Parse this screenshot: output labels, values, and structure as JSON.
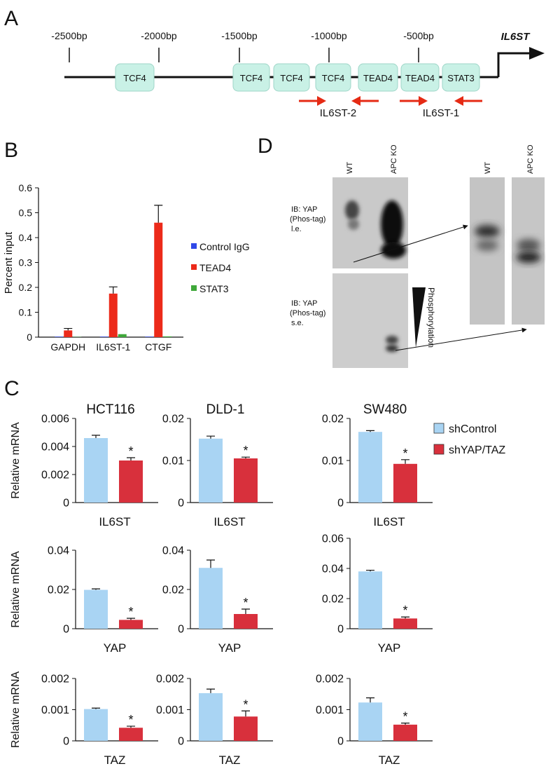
{
  "panel_a": {
    "label": "A",
    "positions": [
      "-2500bp",
      "-2000bp",
      "-1500bp",
      "-1000bp",
      "-500bp"
    ],
    "gene": "IL6ST",
    "sites": [
      "TCF4",
      "TCF4",
      "TCF4",
      "TCF4",
      "TEAD4",
      "TEAD4",
      "STAT3"
    ],
    "primers": [
      "IL6ST-2",
      "IL6ST-1"
    ]
  },
  "panel_b_label": "B",
  "panel_c_label": "C",
  "panel_c_legend": [
    {
      "name": "shControl",
      "color": "#a9d4f3"
    },
    {
      "name": "shYAP/TAZ",
      "color": "#d8303c"
    }
  ],
  "panel_d": {
    "label": "D",
    "lanes": [
      "WT",
      "APC KO"
    ],
    "zoom_lanes": [
      "WT",
      "APC KO"
    ],
    "blots": [
      {
        "probe": "IB: YAP",
        "method": "(Phos-tag)",
        "exposure": "l.e."
      },
      {
        "probe": "IB: YAP",
        "method": "(Phos-tag)",
        "exposure": "s.e."
      }
    ],
    "wedge": "Phosphorylation"
  },
  "chart_data": [
    {
      "type": "bar",
      "ylabel": "Percent input",
      "categories": [
        "GAPDH",
        "IL6ST-1",
        "CTGF"
      ],
      "series": [
        {
          "name": "Control IgG",
          "color": "#3048e8",
          "values": [
            0.002,
            0.002,
            0.002
          ]
        },
        {
          "name": "TEAD4",
          "color": "#ec2a1a",
          "values": [
            0.027,
            0.175,
            0.46
          ],
          "errors": [
            0.008,
            0.027,
            0.07
          ]
        },
        {
          "name": "STAT3",
          "color": "#3fa83a",
          "values": [
            0.001,
            0.012,
            0.003
          ]
        }
      ],
      "ylim": [
        0,
        0.6
      ],
      "yticks": [
        0,
        0.1,
        0.2,
        0.3,
        0.4,
        0.5,
        0.6
      ]
    },
    {
      "type": "bar",
      "title": "HCT116",
      "ylabel": "Relative mRNA",
      "categories": [
        "IL6ST"
      ],
      "series": [
        {
          "values": [
            0.0046
          ],
          "errors": [
            0.0002
          ]
        },
        {
          "values": [
            0.003
          ],
          "errors": [
            0.0002
          ],
          "annotation": "*"
        }
      ],
      "ylim": [
        0,
        0.006
      ],
      "yticks": [
        0,
        0.002,
        0.004,
        0.006
      ]
    },
    {
      "type": "bar",
      "title": "DLD-1",
      "categories": [
        "IL6ST"
      ],
      "series": [
        {
          "values": [
            0.0152
          ],
          "errors": [
            0.0006
          ]
        },
        {
          "values": [
            0.0105
          ],
          "errors": [
            0.0003
          ],
          "annotation": "*"
        }
      ],
      "ylim": [
        0,
        0.02
      ],
      "yticks": [
        0,
        0.01,
        0.02
      ]
    },
    {
      "type": "bar",
      "title": "SW480",
      "categories": [
        "IL6ST"
      ],
      "series": [
        {
          "values": [
            0.0168
          ],
          "errors": [
            0.0003
          ]
        },
        {
          "values": [
            0.0092
          ],
          "errors": [
            0.001
          ],
          "annotation": "*"
        }
      ],
      "ylim": [
        0,
        0.02
      ],
      "yticks": [
        0,
        0.01,
        0.02
      ]
    },
    {
      "type": "bar",
      "ylabel": "Relative mRNA",
      "categories": [
        "YAP"
      ],
      "series": [
        {
          "values": [
            0.0198
          ],
          "errors": [
            0.0005
          ]
        },
        {
          "values": [
            0.0045
          ],
          "errors": [
            0.0008
          ],
          "annotation": "*"
        }
      ],
      "ylim": [
        0,
        0.04
      ],
      "yticks": [
        0,
        0.02,
        0.04
      ]
    },
    {
      "type": "bar",
      "categories": [
        "YAP"
      ],
      "series": [
        {
          "values": [
            0.031
          ],
          "errors": [
            0.004
          ]
        },
        {
          "values": [
            0.0075
          ],
          "errors": [
            0.0025
          ],
          "annotation": "*"
        }
      ],
      "ylim": [
        0,
        0.04
      ],
      "yticks": [
        0,
        0.02,
        0.04
      ]
    },
    {
      "type": "bar",
      "categories": [
        "YAP"
      ],
      "series": [
        {
          "values": [
            0.038
          ],
          "errors": [
            0.0008
          ]
        },
        {
          "values": [
            0.0068
          ],
          "errors": [
            0.001
          ],
          "annotation": "*"
        }
      ],
      "ylim": [
        0,
        0.06
      ],
      "yticks": [
        0,
        0.02,
        0.04,
        0.06
      ]
    },
    {
      "type": "bar",
      "ylabel": "Relative mRNA",
      "categories": [
        "TAZ"
      ],
      "series": [
        {
          "values": [
            0.00102
          ],
          "errors": [
            3e-05
          ]
        },
        {
          "values": [
            0.00042
          ],
          "errors": [
            5e-05
          ],
          "annotation": "*"
        }
      ],
      "ylim": [
        0,
        0.002
      ],
      "yticks": [
        0,
        0.001,
        0.002
      ]
    },
    {
      "type": "bar",
      "categories": [
        "TAZ"
      ],
      "series": [
        {
          "values": [
            0.00153
          ],
          "errors": [
            0.00013
          ]
        },
        {
          "values": [
            0.00078
          ],
          "errors": [
            0.00018
          ],
          "annotation": "*"
        }
      ],
      "ylim": [
        0,
        0.002
      ],
      "yticks": [
        0,
        0.001,
        0.002
      ]
    },
    {
      "type": "bar",
      "categories": [
        "TAZ"
      ],
      "series": [
        {
          "values": [
            0.00123
          ],
          "errors": [
            0.00015
          ]
        },
        {
          "values": [
            0.00052
          ],
          "errors": [
            5e-05
          ],
          "annotation": "*"
        }
      ],
      "ylim": [
        0,
        0.002
      ],
      "yticks": [
        0,
        0.001,
        0.002
      ]
    }
  ]
}
